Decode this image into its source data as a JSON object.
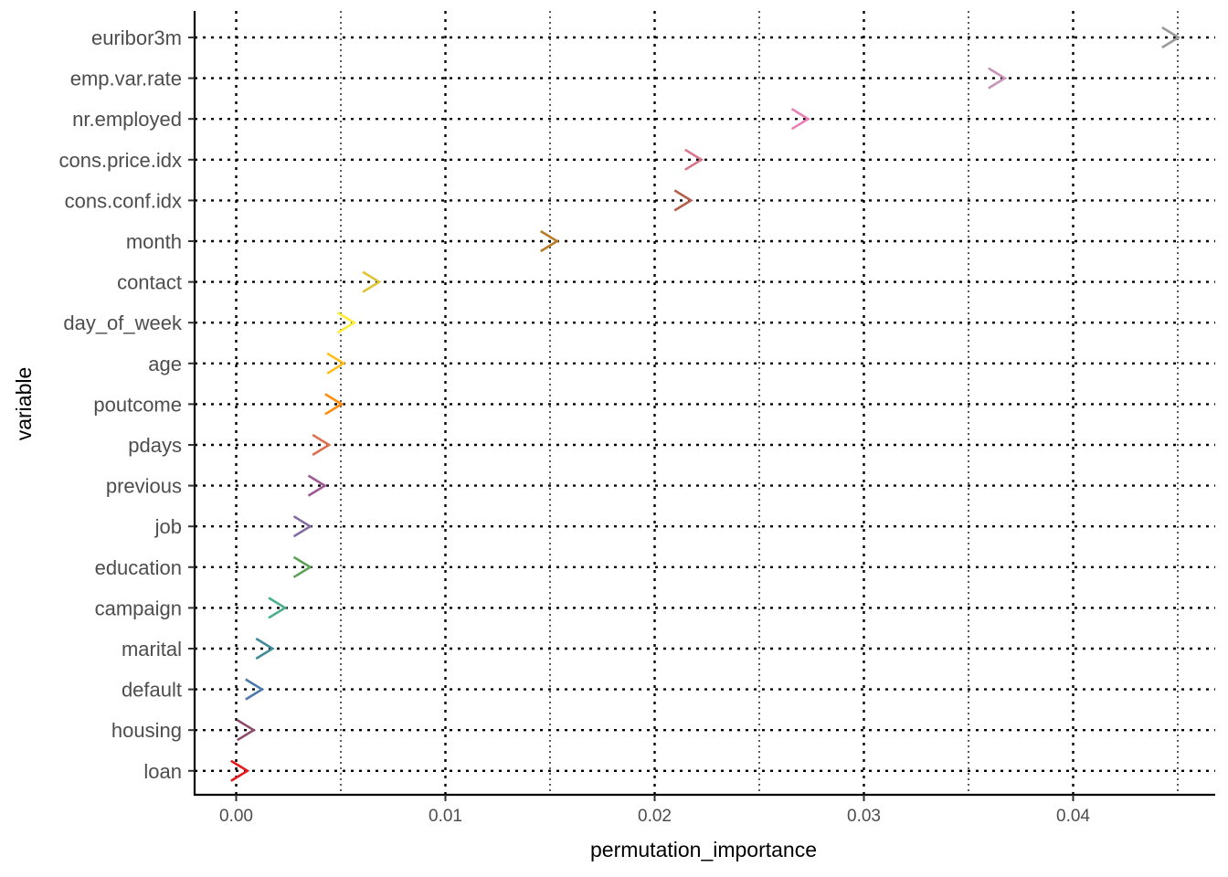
{
  "chart_data": {
    "type": "scatter",
    "marker": "chevron-right",
    "xlabel": "permutation_importance",
    "ylabel": "variable",
    "xlim": [
      -0.002,
      0.0467
    ],
    "x_ticks": [
      0.0,
      0.01,
      0.02,
      0.03,
      0.04
    ],
    "x_tick_labels": [
      "0.00",
      "0.01",
      "0.02",
      "0.03",
      "0.04"
    ],
    "grid": "dotted major and minor lines",
    "legend": "none",
    "categories": [
      "euribor3m",
      "emp.var.rate",
      "nr.employed",
      "cons.price.idx",
      "cons.conf.idx",
      "month",
      "contact",
      "day_of_week",
      "age",
      "poutcome",
      "pdays",
      "previous",
      "job",
      "education",
      "campaign",
      "marital",
      "default",
      "housing",
      "loan"
    ],
    "values": [
      0.0446,
      0.0363,
      0.0269,
      0.0218,
      0.0213,
      0.0149,
      0.0064,
      0.0052,
      0.0047,
      0.0046,
      0.004,
      0.0038,
      0.0031,
      0.0031,
      0.0019,
      0.0013,
      0.0008,
      0.0004,
      0.0001
    ],
    "colors": [
      "#999999",
      "#c994b8",
      "#e87fb6",
      "#d9778a",
      "#b3604a",
      "#b87c28",
      "#e0c438",
      "#ffeb33",
      "#ffbe1a",
      "#ff8c0d",
      "#dc7050",
      "#9f5a93",
      "#836aa2",
      "#5ba155",
      "#4daf8c",
      "#3f8a97",
      "#4e79ac",
      "#8b4a6a",
      "#e41a1c"
    ]
  }
}
